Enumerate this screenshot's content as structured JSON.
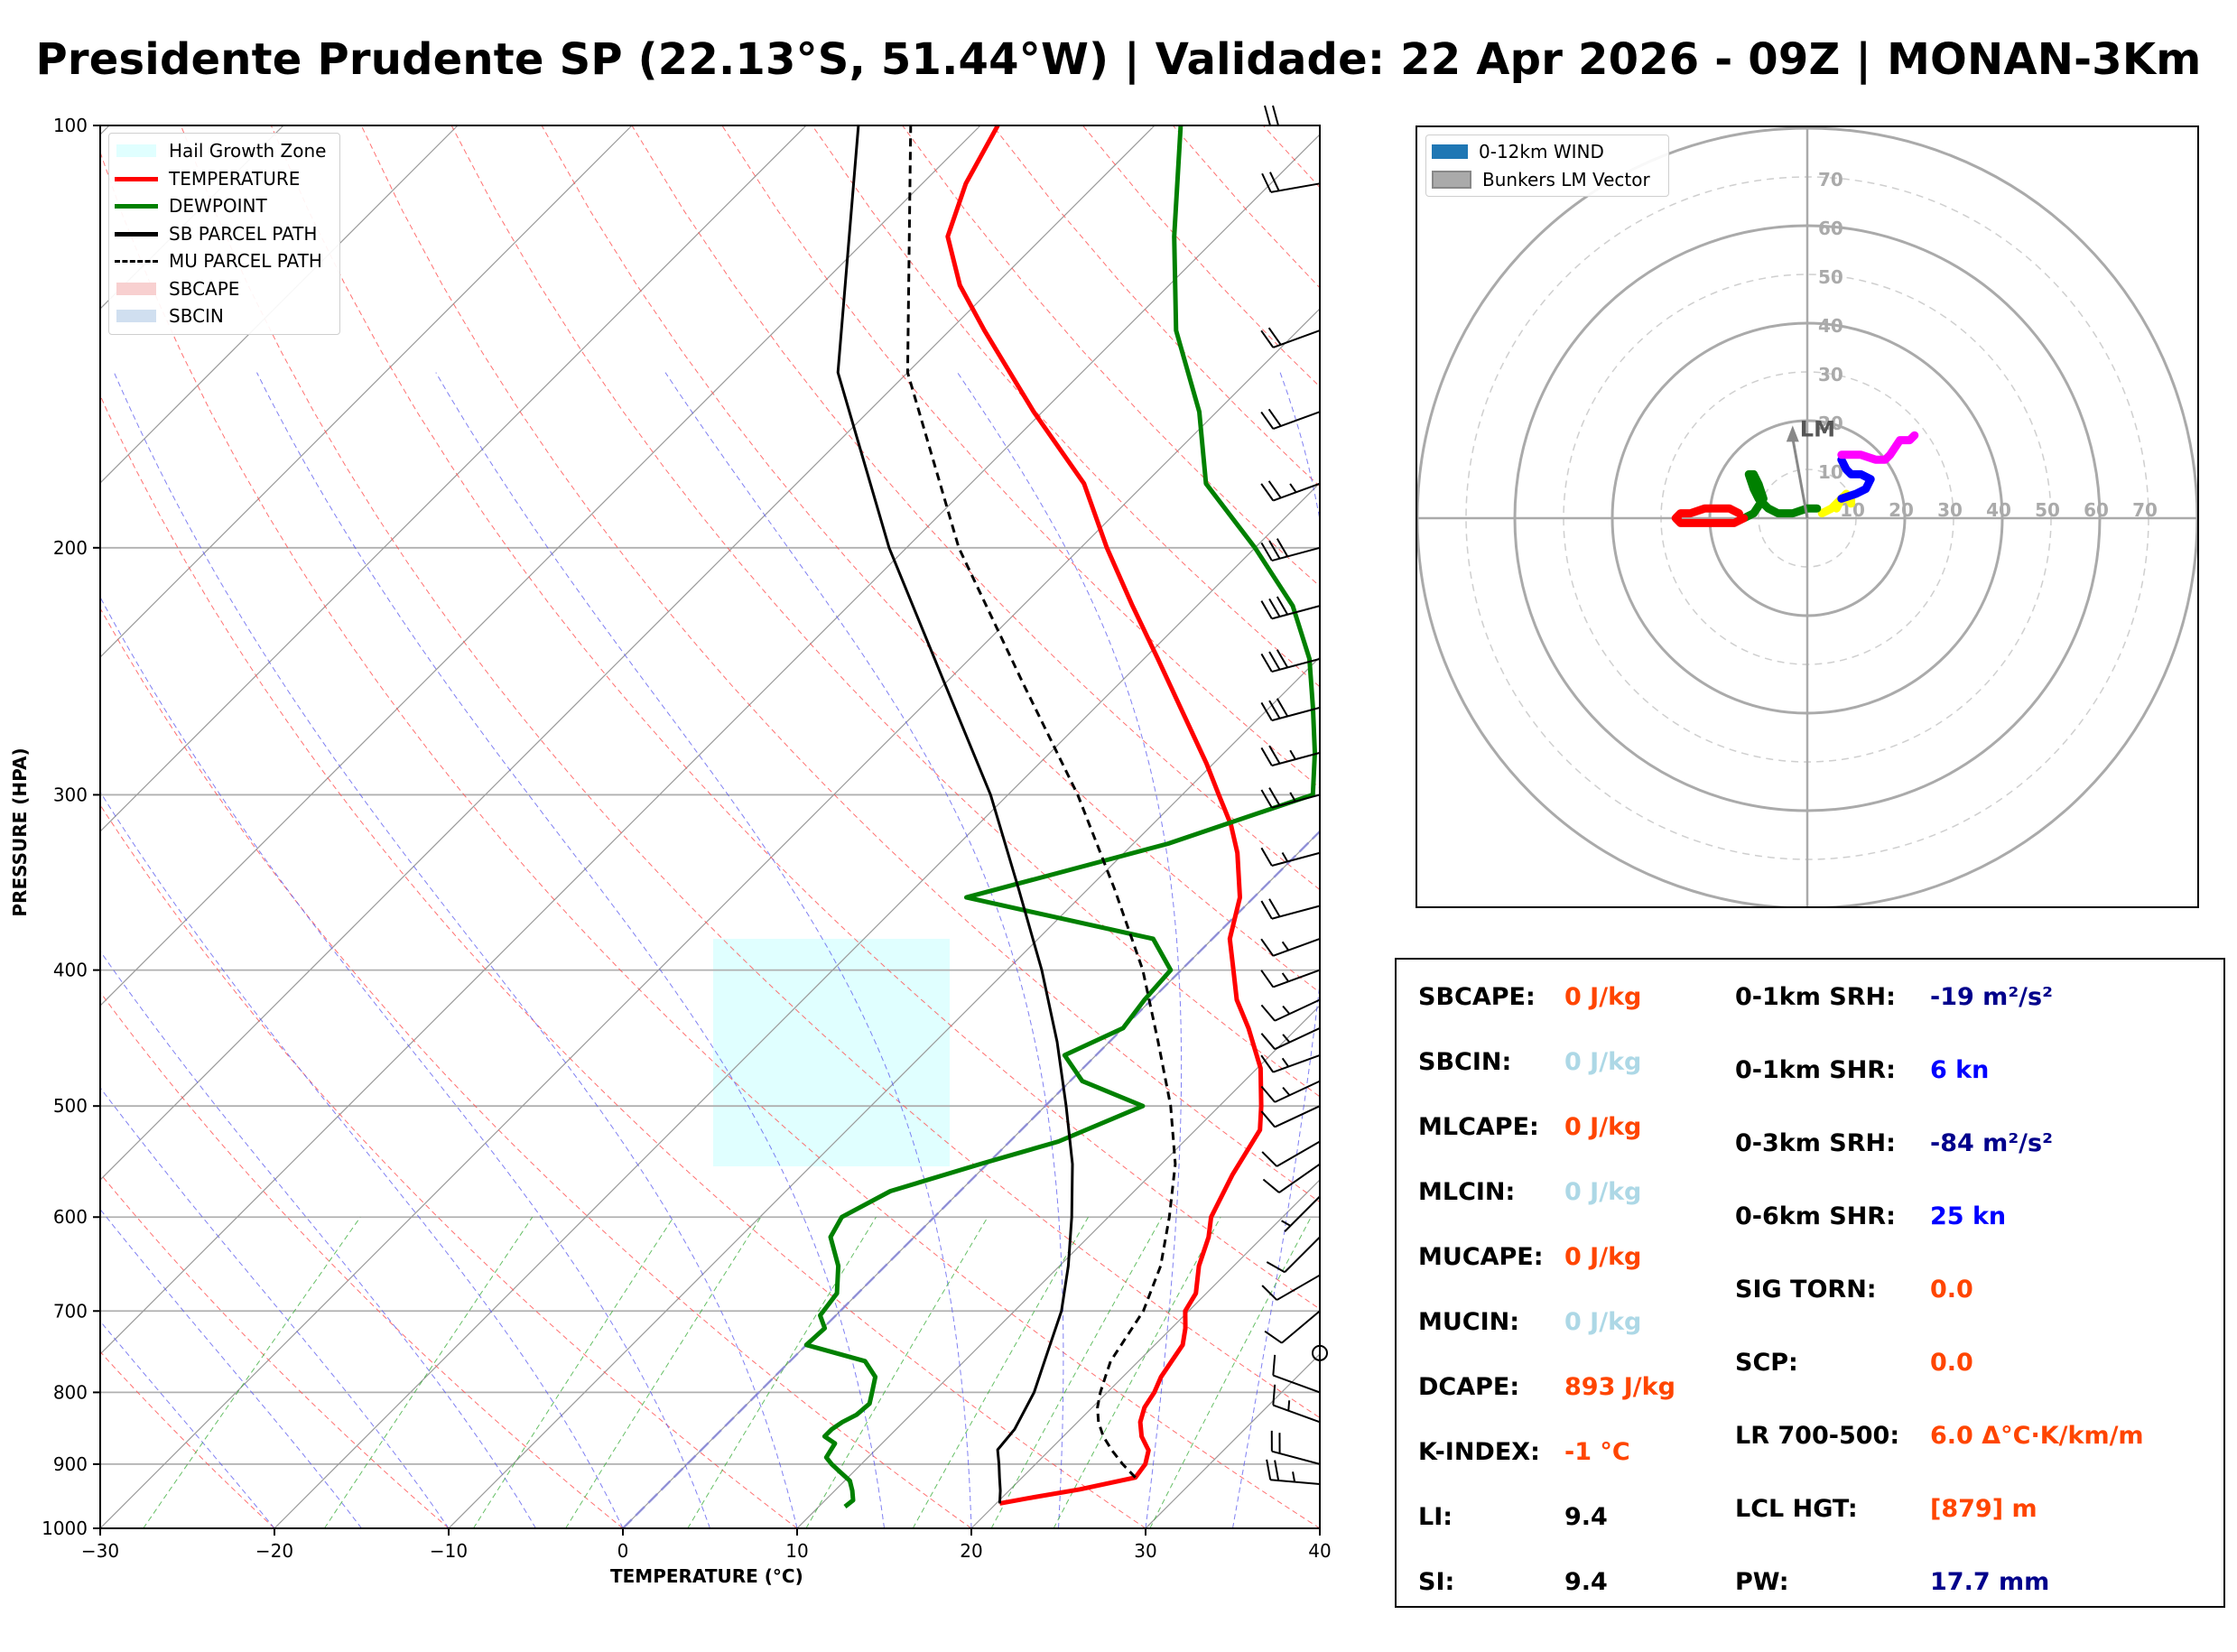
{
  "title": "Presidente Prudente SP (22.13°S, 51.44°W) | Validade: 22 Apr 2026 - 09Z | MONAN-3Km",
  "skewt": {
    "xlabel": "TEMPERATURE (°C)",
    "ylabel": "PRESSURE (HPA)",
    "legend": [
      {
        "label": "Hail Growth Zone",
        "kind": "patch",
        "color": "#e0ffff"
      },
      {
        "label": "TEMPERATURE",
        "kind": "line",
        "color": "#ff0000"
      },
      {
        "label": "DEWPOINT",
        "kind": "line",
        "color": "#008000"
      },
      {
        "label": "SB PARCEL PATH",
        "kind": "line",
        "color": "#000000"
      },
      {
        "label": "MU PARCEL PATH",
        "kind": "dashed",
        "color": "#000000"
      },
      {
        "label": "SBCAPE",
        "kind": "patch",
        "color": "#f8d0d0"
      },
      {
        "label": "SBCIN",
        "kind": "patch",
        "color": "#d0dff0"
      }
    ]
  },
  "hodograph": {
    "legend": [
      {
        "label": "0-12km WIND",
        "color": "#1f77b4"
      },
      {
        "label": "Bunkers LM Vector",
        "color": "#aaaaaa"
      }
    ],
    "ring_labels": [
      "10",
      "20",
      "30",
      "40",
      "50",
      "60",
      "70"
    ],
    "lm_label": "LM"
  },
  "params": {
    "left": [
      {
        "label": "SBCAPE:",
        "value": "0 J/kg",
        "color": "#ff4500"
      },
      {
        "label": "SBCIN:",
        "value": "0 J/kg",
        "color": "#add8e6"
      },
      {
        "label": "MLCAPE:",
        "value": "0 J/kg",
        "color": "#ff4500"
      },
      {
        "label": "MLCIN:",
        "value": "0 J/kg",
        "color": "#add8e6"
      },
      {
        "label": "MUCAPE:",
        "value": "0 J/kg",
        "color": "#ff4500"
      },
      {
        "label": "MUCIN:",
        "value": "0 J/kg",
        "color": "#add8e6"
      },
      {
        "label": "DCAPE:",
        "value": "893 J/kg",
        "color": "#ff4500"
      },
      {
        "label": "K-INDEX:",
        "value": "-1 °C",
        "color": "#ff4500"
      },
      {
        "label": "LI:",
        "value": "9.4",
        "color": "#000000"
      },
      {
        "label": "SI:",
        "value": "9.4",
        "color": "#000000"
      }
    ],
    "right": [
      {
        "label": "0-1km SRH:",
        "value": "-19 m²/s²",
        "color": "#00008b"
      },
      {
        "label": "0-1km SHR:",
        "value": "6 kn",
        "color": "#0000ff"
      },
      {
        "label": "0-3km SRH:",
        "value": "-84 m²/s²",
        "color": "#00008b"
      },
      {
        "label": "0-6km SHR:",
        "value": "25 kn",
        "color": "#0000ff"
      },
      {
        "label": "SIG TORN:",
        "value": "0.0",
        "color": "#ff4500"
      },
      {
        "label": "SCP:",
        "value": "0.0",
        "color": "#ff4500"
      },
      {
        "label": "LR 700-500:",
        "value": "6.0 Δ°C·K/km/m",
        "color": "#ff4500"
      },
      {
        "label": "LCL HGT:",
        "value": "[879] m",
        "color": "#ff4500"
      },
      {
        "label": "PW:",
        "value": "17.7 mm",
        "color": "#00008b"
      }
    ]
  },
  "chart_data": [
    {
      "type": "line",
      "kind": "skew-T log-P",
      "xlabel": "TEMPERATURE (°C)",
      "ylabel": "PRESSURE (HPA)",
      "xlim": [
        -30,
        40
      ],
      "ylim": [
        1000,
        100
      ],
      "y_scale": "log",
      "x_ticks": [
        -30,
        -20,
        -10,
        0,
        10,
        20,
        30,
        40
      ],
      "x_tick_labels": [
        "−30",
        "−20",
        "−10",
        "0",
        "10",
        "20",
        "30",
        "40"
      ],
      "y_ticks": [
        100,
        200,
        300,
        400,
        500,
        600,
        700,
        800,
        900,
        1000
      ],
      "grid": true,
      "legend_position": "top-left",
      "hail_growth_zone_pressure_hpa": [
        380,
        552
      ],
      "series": [
        {
          "name": "TEMPERATURE",
          "color": "#ff0000",
          "pressure": [
            960,
            952,
            938,
            920,
            900,
            880,
            860,
            840,
            820,
            800,
            780,
            760,
            740,
            720,
            700,
            680,
            650,
            620,
            600,
            560,
            520,
            500,
            470,
            440,
            420,
            400,
            380,
            355,
            330,
            315,
            300,
            285,
            260,
            240,
            220,
            200,
            180,
            160,
            140,
            130,
            120,
            110,
            100
          ],
          "temperature": [
            20.2,
            21.5,
            24.0,
            26.5,
            26.3,
            25.7,
            24.5,
            23.6,
            23.0,
            22.7,
            22.2,
            21.9,
            21.6,
            20.8,
            19.8,
            19.4,
            18.0,
            16.9,
            15.9,
            14.7,
            13.7,
            12.4,
            10.2,
            7.2,
            4.9,
            3.0,
            1.0,
            -0.8,
            -3.5,
            -5.5,
            -7.9,
            -10.4,
            -15.1,
            -19.2,
            -23.7,
            -28.5,
            -33.5,
            -40.5,
            -48.0,
            -52.0,
            -55.5,
            -57.5,
            -59.0
          ]
        },
        {
          "name": "DEWPOINT",
          "color": "#008000",
          "pressure": [
            965,
            955,
            940,
            925,
            910,
            900,
            890,
            870,
            860,
            850,
            840,
            830,
            815,
            800,
            780,
            760,
            740,
            720,
            705,
            680,
            650,
            620,
            600,
            575,
            550,
            530,
            500,
            480,
            460,
            440,
            420,
            400,
            380,
            355,
            325,
            300,
            280,
            260,
            240,
            220,
            200,
            180,
            160,
            140,
            120,
            100
          ],
          "dewpoint": [
            11.5,
            11.6,
            11.0,
            10.3,
            9.1,
            8.3,
            7.6,
            7.3,
            6.3,
            6.3,
            6.5,
            6.9,
            7.0,
            6.5,
            5.8,
            4.3,
            0.0,
            0.1,
            -0.9,
            -1.2,
            -2.7,
            -4.8,
            -5.3,
            -4.0,
            -0.4,
            2.8,
            5.6,
            0.7,
            -1.8,
            0.0,
            -0.4,
            -0.6,
            -3.4,
            -16.5,
            -8.0,
            -2.5,
            -4.8,
            -7.5,
            -10.5,
            -14.5,
            -20.0,
            -26.5,
            -31.0,
            -37.0,
            -42.5,
            -48.5
          ]
        },
        {
          "name": "SB PARCEL PATH",
          "color": "#000000",
          "pressure": [
            960,
            940,
            920,
            900,
            879,
            850,
            800,
            750,
            700,
            650,
            600,
            550,
            500,
            450,
            400,
            350,
            300,
            250,
            200,
            150,
            100
          ],
          "temperature": [
            20.2,
            19.5,
            18.7,
            17.9,
            17.0,
            16.8,
            15.8,
            14.3,
            12.7,
            10.5,
            7.9,
            4.9,
            1.2,
            -3.0,
            -8.0,
            -14.0,
            -21.0,
            -30.0,
            -41.0,
            -54.0,
            -67.0
          ]
        },
        {
          "name": "MU PARCEL PATH",
          "color": "#000000",
          "dashed": true,
          "pressure": [
            920,
            900,
            880,
            860,
            840,
            820,
            800,
            780,
            760,
            700,
            650,
            600,
            550,
            500,
            450,
            400,
            350,
            300,
            250,
            200,
            150,
            100
          ],
          "temperature": [
            26.5,
            25.0,
            23.6,
            22.3,
            21.2,
            20.3,
            19.6,
            19.0,
            18.4,
            17.4,
            15.8,
            13.5,
            10.8,
            7.2,
            2.8,
            -2.2,
            -8.5,
            -16.0,
            -25.5,
            -37.0,
            -50.0,
            -64.0
          ]
        }
      ],
      "wind_barbs": {
        "pressure": [
          100,
          110,
          140,
          160,
          180,
          200,
          220,
          240,
          260,
          280,
          300,
          330,
          360,
          380,
          400,
          420,
          440,
          460,
          480,
          500,
          530,
          550,
          580,
          620,
          660,
          700,
          750,
          800,
          840,
          900,
          930
        ],
        "direction_deg": [
          270,
          260,
          250,
          250,
          250,
          255,
          255,
          255,
          255,
          255,
          255,
          255,
          255,
          250,
          250,
          245,
          245,
          250,
          245,
          245,
          240,
          235,
          225,
          225,
          240,
          230,
          0,
          290,
          290,
          285,
          275
        ],
        "speed_kt": [
          20,
          20,
          20,
          20,
          25,
          30,
          30,
          30,
          30,
          25,
          25,
          15,
          20,
          15,
          15,
          15,
          15,
          15,
          15,
          10,
          10,
          10,
          5,
          10,
          10,
          10,
          0,
          10,
          15,
          20,
          25
        ]
      }
    },
    {
      "type": "line",
      "kind": "hodograph",
      "xlim": [
        -80,
        80
      ],
      "ylim": [
        -80,
        80
      ],
      "rings": [
        10,
        20,
        30,
        40,
        50,
        60,
        70,
        80
      ],
      "grid": true,
      "legend_position": "top-left",
      "series": [
        {
          "color": "#ffff00",
          "u": [
            3,
            5,
            7,
            9,
            9,
            8,
            7,
            6
          ],
          "v": [
            1,
            2,
            4,
            4,
            3,
            5,
            4,
            2
          ]
        },
        {
          "color": "#0000ff",
          "u": [
            7,
            10,
            12,
            13,
            11,
            9,
            8,
            7
          ],
          "v": [
            4,
            5,
            6,
            8,
            9,
            9,
            10,
            12
          ]
        },
        {
          "color": "#ff00ff",
          "u": [
            7,
            11,
            14,
            16,
            17,
            19,
            21,
            22
          ],
          "v": [
            13,
            13,
            12,
            12,
            13,
            16,
            16,
            17
          ]
        },
        {
          "color": "#008000",
          "u": [
            2,
            0,
            -3,
            -6,
            -8,
            -10,
            -11,
            -12,
            -11,
            -10,
            -9,
            -11,
            -13
          ],
          "v": [
            2,
            2,
            1,
            1,
            2,
            4,
            6,
            9,
            9,
            7,
            4,
            1,
            0
          ]
        },
        {
          "color": "#ff0000",
          "u": [
            -13,
            -15,
            -18,
            -21,
            -24,
            -26,
            -27,
            -26,
            -24,
            -21,
            -19,
            -16,
            -14
          ],
          "v": [
            0,
            -1,
            -1,
            -1,
            -1,
            -1,
            0,
            1,
            1,
            2,
            2,
            2,
            1
          ]
        }
      ],
      "bunkers_lm_vector": {
        "u": -3,
        "v": 19
      }
    }
  ]
}
